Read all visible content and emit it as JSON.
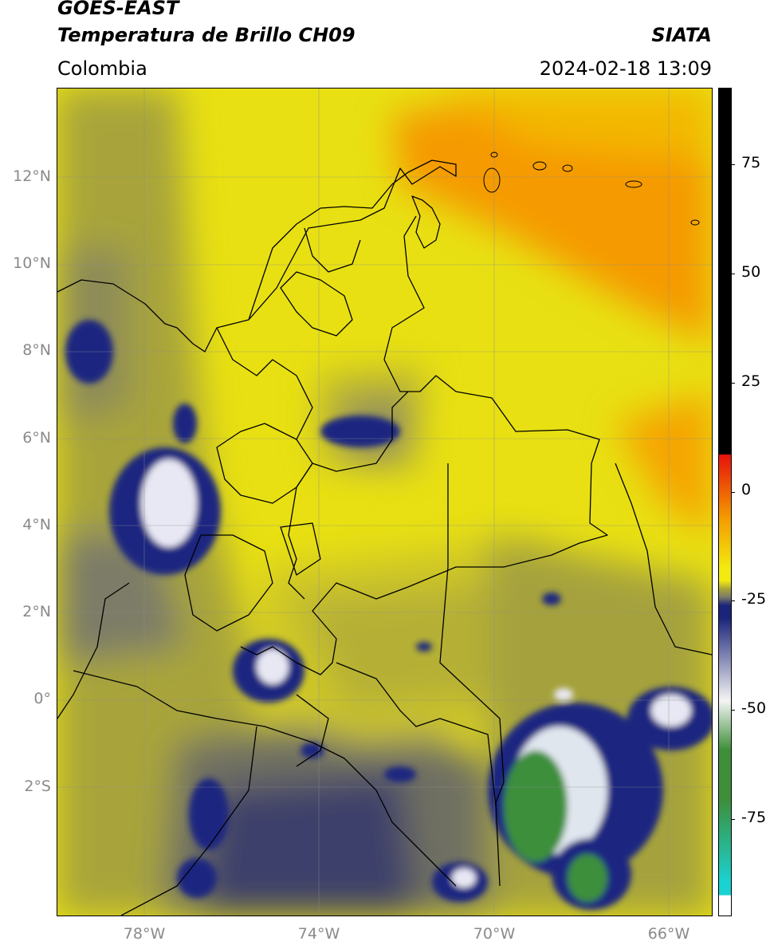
{
  "header": {
    "title_line1": "GOES-EAST",
    "title_line2": "Temperatura de Brillo CH09",
    "region": "Colombia",
    "agency": "SIATA",
    "datetime": "2024-02-18 13:09"
  },
  "map": {
    "lat_labels": [
      "12°N",
      "10°N",
      "8°N",
      "6°N",
      "4°N",
      "2°N",
      "0°",
      "2°S"
    ],
    "lon_labels": [
      "78°W",
      "74°W",
      "70°W",
      "66°W"
    ],
    "lon_range": [
      -80,
      -65
    ],
    "lat_range": [
      -5,
      14
    ]
  },
  "colorbar": {
    "ticks": [
      "75",
      "50",
      "25",
      "0",
      "-25",
      "-50",
      "-75"
    ],
    "tick_values": [
      75,
      50,
      25,
      0,
      -25,
      -50,
      -75
    ],
    "range": [
      -95,
      90
    ],
    "colors": {
      "warm_black": "#000000",
      "red": "#e8120c",
      "orange": "#f39c00",
      "yellow": "#f2ea10",
      "olive": "#a9a63a",
      "gray": "#7a7a66",
      "navy": "#1a2479",
      "white": "#f4f4f4",
      "green": "#3d8f3a",
      "cyan": "#1ad2d2"
    }
  }
}
